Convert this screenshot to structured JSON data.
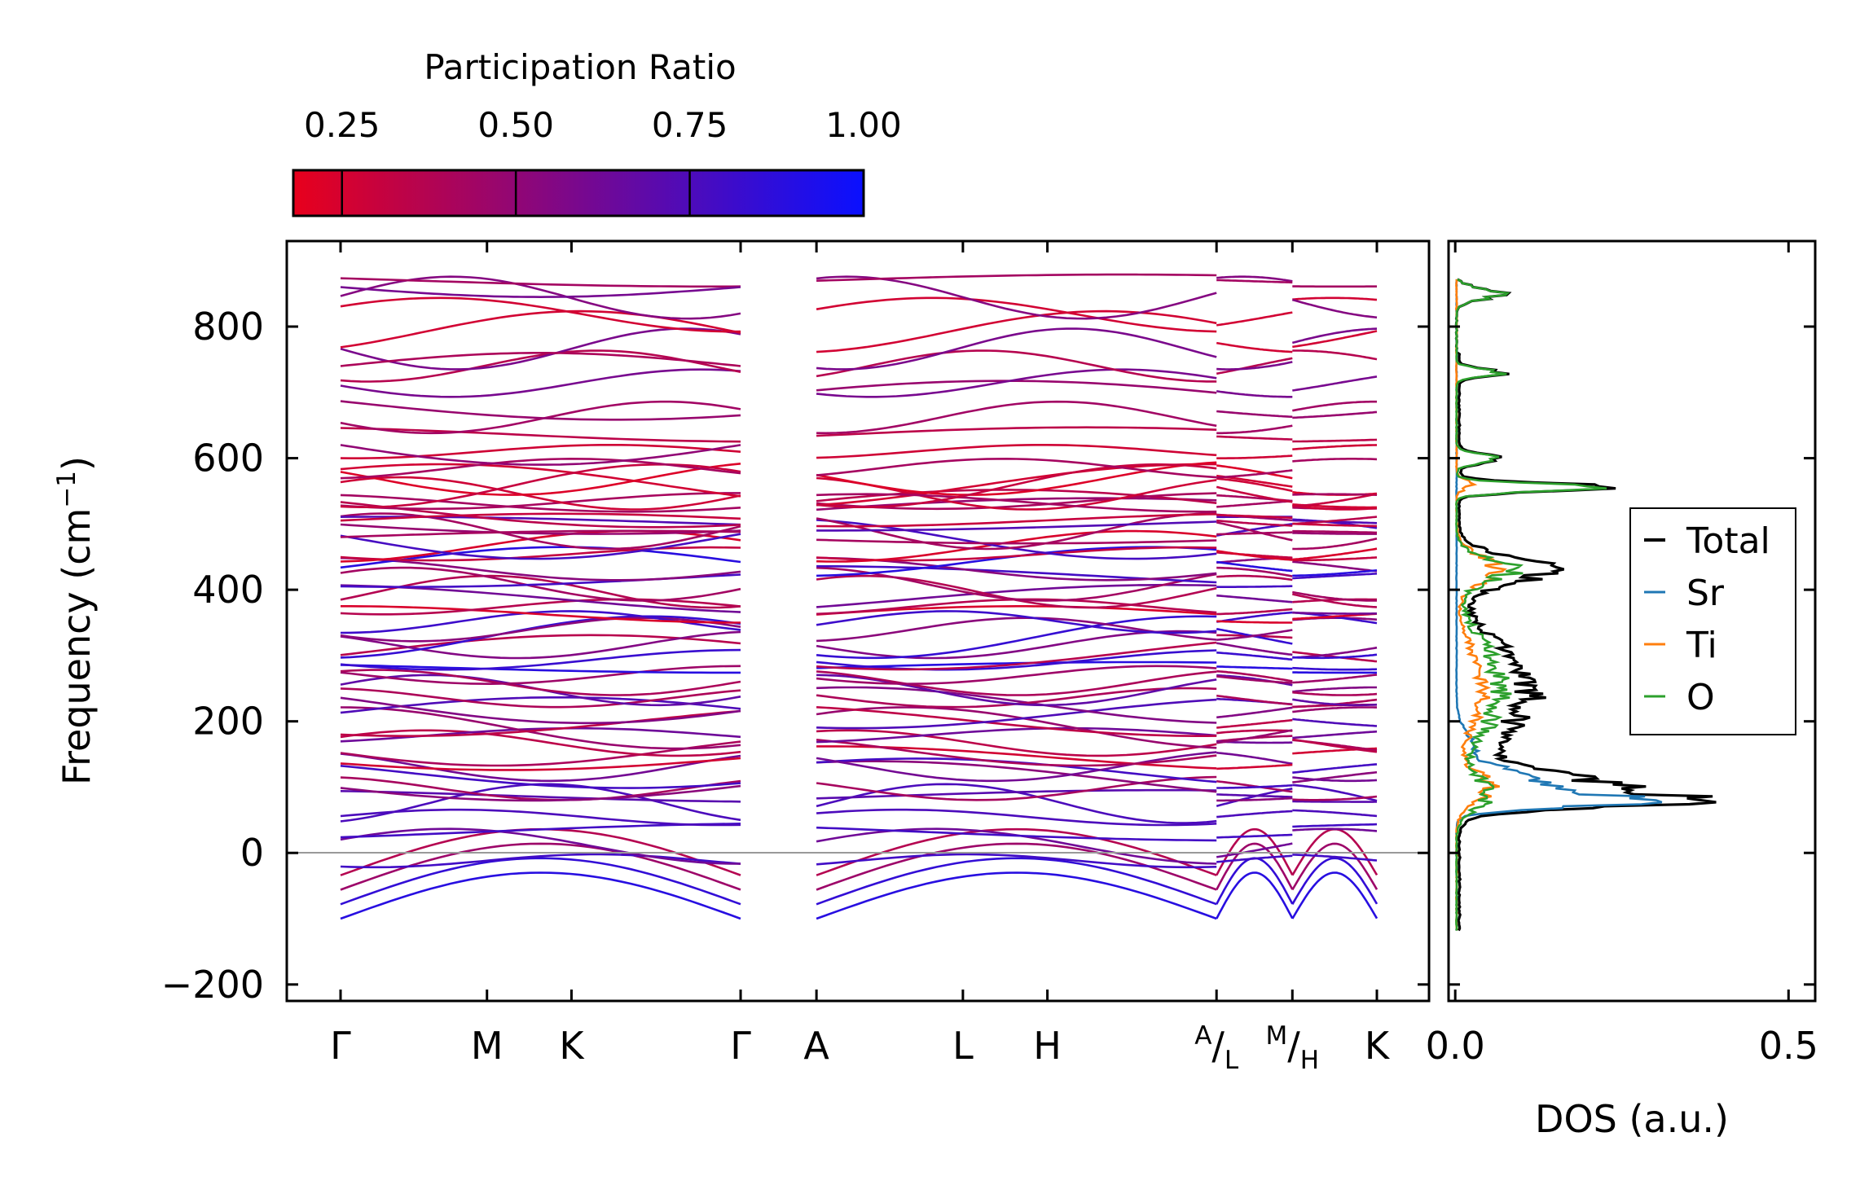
{
  "chart_data": [
    {
      "type": "line",
      "name": "phonon-band-structure",
      "ylabel": "Frequency (cm",
      "ylabel_sup": "−1",
      "ylabel_close": ")",
      "ylim": [
        -225,
        930
      ],
      "y_ticks": [
        -200,
        0,
        200,
        400,
        600,
        800
      ],
      "y_tick_labels": [
        "−200",
        "0",
        "200",
        "400",
        "600",
        "800"
      ],
      "x_labels": [
        {
          "name": "gamma",
          "text": "Γ",
          "pos": 0.0
        },
        {
          "name": "m",
          "text": "M",
          "pos": 1.0
        },
        {
          "name": "k",
          "text": "K",
          "pos": 1.577
        },
        {
          "name": "gamma2",
          "text": "Γ",
          "pos": 2.732
        },
        {
          "name": "a",
          "text": "A",
          "pos": 3.25
        },
        {
          "name": "l",
          "text": "L",
          "pos": 4.25
        },
        {
          "name": "h",
          "text": "H",
          "pos": 4.827
        },
        {
          "name": "al",
          "text": "",
          "sup": "A",
          "sub": "L",
          "pos": 5.982
        },
        {
          "name": "mh",
          "text": "",
          "sup": "M",
          "sub": "H",
          "pos": 6.5
        },
        {
          "name": "k2",
          "text": "K",
          "pos": 7.077
        }
      ],
      "zero_line": 0,
      "band_count": 68,
      "colormap": {
        "title": "Participation Ratio",
        "min": 0.18,
        "max": 1.0,
        "low_color": "#e8001c",
        "high_color": "#0a10ff",
        "ticks": [
          0.25,
          0.5,
          0.75,
          1.0
        ],
        "tick_labels": [
          "0.25",
          "0.50",
          "0.75",
          "1.00"
        ]
      }
    },
    {
      "type": "line",
      "name": "phonon-dos",
      "xlabel": "DOS (a.u.)",
      "xlim": [
        -0.01,
        0.54
      ],
      "x_ticks": [
        0.0,
        0.5
      ],
      "x_tick_labels": [
        "0.0",
        "0.5"
      ],
      "legend": "center-right",
      "series": [
        {
          "name": "Total",
          "color": "#000000"
        },
        {
          "name": "Sr",
          "color": "#1f77b4"
        },
        {
          "name": "Ti",
          "color": "#ff7f0e"
        },
        {
          "name": "O",
          "color": "#2ca02c"
        }
      ],
      "y_range": [
        -118,
        872
      ]
    }
  ]
}
